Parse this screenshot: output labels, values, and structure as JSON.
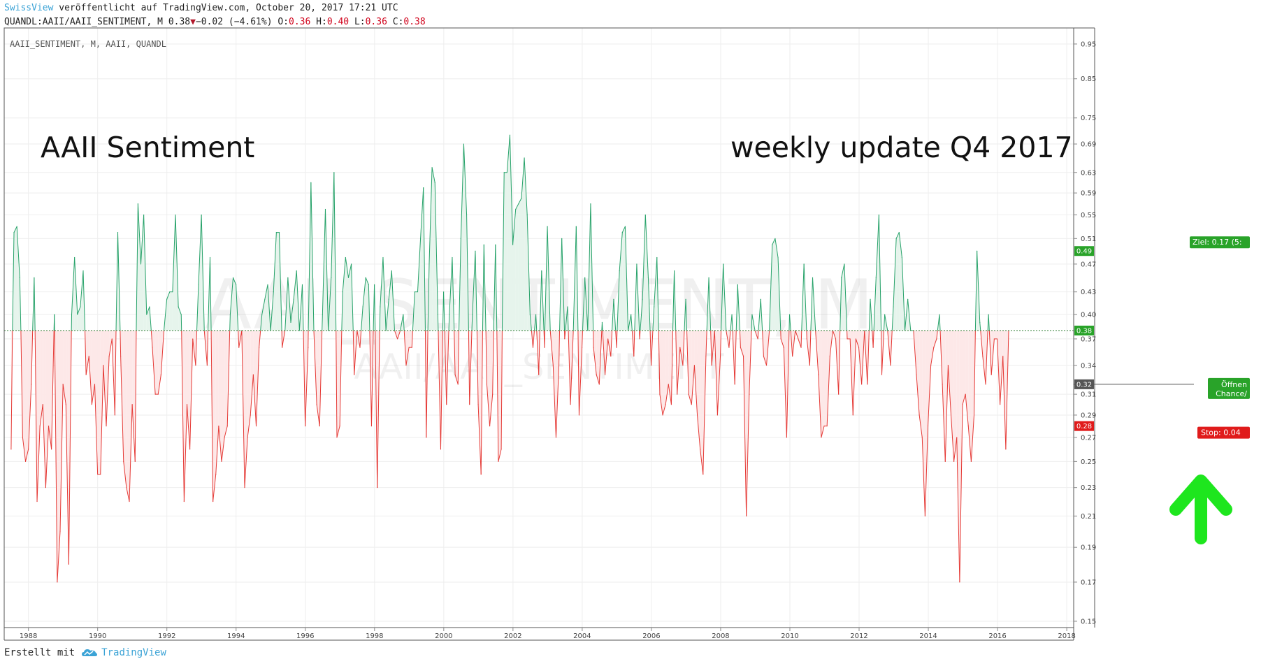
{
  "header": {
    "publisher": "SwissView",
    "published_text": "veröffentlicht auf TradingView.com, October 20, 2017 17:21 UTC",
    "symbol": "QUANDL:AAII/AAII_SENTIMENT, M",
    "last": "0.38",
    "change": "−0.02 (−4.61%)",
    "o_label": "O:",
    "o_value": "0.36",
    "h_label": "H:",
    "h_value": "0.40",
    "l_label": "L:",
    "l_value": "0.36",
    "c_label": "C:",
    "c_value": "0.38"
  },
  "footer": {
    "created_with": "Erstellt mit",
    "brand": "TradingView"
  },
  "colors": {
    "up_line": "#26a269",
    "down_line": "#e53935",
    "up_fill": "#e6f4ec",
    "down_fill": "#fde8e8",
    "target_fill": "#cdebc9",
    "stop_fill": "#f8c8c8",
    "arrow": "#1ee61e"
  },
  "chart_data": {
    "type": "line",
    "legend_text": "AAII_SENTIMENT, M, AAII, QUANDL",
    "title": "AAII Sentiment",
    "subtitle": "weekly update Q4 2017",
    "watermark_main": "AAII_SENTIMENT, M",
    "watermark_sub": "AAII/AAII_SENTIMENT",
    "x_tick_labels": [
      "1988",
      "1990",
      "1992",
      "1994",
      "1996",
      "1998",
      "2000",
      "2002",
      "2004",
      "2006",
      "2008",
      "2010",
      "2012",
      "2014",
      "2016",
      "2018"
    ],
    "y_tick_labels": [
      "0.95",
      "0.85",
      "0.75",
      "0.69",
      "0.63",
      "0.59",
      "0.55",
      "0.51",
      "0.47",
      "0.43",
      "0.40",
      "0.37",
      "0.34",
      "0.31",
      "0.29",
      "0.27",
      "0.25",
      "0.23",
      "0.21",
      "0.19",
      "0.17",
      "0.15"
    ],
    "y_scale": "log",
    "xlim": [
      1987.3,
      2018.2
    ],
    "ylim": [
      0.147,
      1.0
    ],
    "baseline": 0.38,
    "x_start": 1987.5,
    "x_step": 0.0833,
    "values": [
      0.26,
      0.52,
      0.53,
      0.45,
      0.27,
      0.25,
      0.26,
      0.32,
      0.45,
      0.22,
      0.28,
      0.3,
      0.23,
      0.28,
      0.26,
      0.4,
      0.17,
      0.2,
      0.32,
      0.3,
      0.18,
      0.4,
      0.48,
      0.4,
      0.41,
      0.46,
      0.33,
      0.35,
      0.3,
      0.32,
      0.24,
      0.24,
      0.34,
      0.28,
      0.35,
      0.37,
      0.29,
      0.52,
      0.35,
      0.25,
      0.23,
      0.22,
      0.3,
      0.25,
      0.57,
      0.47,
      0.55,
      0.4,
      0.41,
      0.36,
      0.31,
      0.31,
      0.33,
      0.38,
      0.42,
      0.43,
      0.43,
      0.55,
      0.41,
      0.4,
      0.22,
      0.3,
      0.26,
      0.37,
      0.34,
      0.44,
      0.55,
      0.38,
      0.34,
      0.48,
      0.22,
      0.24,
      0.28,
      0.25,
      0.27,
      0.28,
      0.4,
      0.45,
      0.44,
      0.36,
      0.38,
      0.23,
      0.27,
      0.29,
      0.33,
      0.28,
      0.36,
      0.4,
      0.42,
      0.44,
      0.38,
      0.43,
      0.52,
      0.52,
      0.36,
      0.38,
      0.45,
      0.39,
      0.42,
      0.46,
      0.38,
      0.44,
      0.28,
      0.36,
      0.61,
      0.38,
      0.3,
      0.28,
      0.4,
      0.56,
      0.38,
      0.45,
      0.63,
      0.27,
      0.28,
      0.43,
      0.48,
      0.45,
      0.47,
      0.33,
      0.38,
      0.36,
      0.41,
      0.45,
      0.44,
      0.28,
      0.44,
      0.23,
      0.41,
      0.48,
      0.38,
      0.42,
      0.46,
      0.38,
      0.37,
      0.38,
      0.4,
      0.34,
      0.36,
      0.36,
      0.43,
      0.43,
      0.51,
      0.6,
      0.27,
      0.47,
      0.64,
      0.61,
      0.4,
      0.26,
      0.43,
      0.3,
      0.4,
      0.48,
      0.33,
      0.32,
      0.51,
      0.69,
      0.55,
      0.3,
      0.4,
      0.49,
      0.3,
      0.24,
      0.5,
      0.32,
      0.28,
      0.31,
      0.5,
      0.25,
      0.26,
      0.63,
      0.63,
      0.71,
      0.5,
      0.56,
      0.57,
      0.58,
      0.66,
      0.55,
      0.4,
      0.36,
      0.4,
      0.33,
      0.46,
      0.36,
      0.53,
      0.38,
      0.34,
      0.27,
      0.34,
      0.51,
      0.37,
      0.41,
      0.3,
      0.38,
      0.53,
      0.29,
      0.36,
      0.45,
      0.38,
      0.57,
      0.36,
      0.33,
      0.32,
      0.39,
      0.33,
      0.37,
      0.35,
      0.42,
      0.36,
      0.46,
      0.52,
      0.53,
      0.38,
      0.4,
      0.35,
      0.47,
      0.37,
      0.42,
      0.55,
      0.45,
      0.34,
      0.41,
      0.48,
      0.31,
      0.29,
      0.3,
      0.32,
      0.3,
      0.46,
      0.31,
      0.36,
      0.34,
      0.42,
      0.31,
      0.3,
      0.34,
      0.29,
      0.26,
      0.24,
      0.35,
      0.45,
      0.34,
      0.38,
      0.29,
      0.35,
      0.47,
      0.38,
      0.36,
      0.4,
      0.32,
      0.44,
      0.36,
      0.35,
      0.21,
      0.31,
      0.4,
      0.38,
      0.37,
      0.42,
      0.35,
      0.34,
      0.38,
      0.5,
      0.51,
      0.48,
      0.37,
      0.36,
      0.27,
      0.4,
      0.35,
      0.38,
      0.37,
      0.36,
      0.47,
      0.37,
      0.34,
      0.45,
      0.38,
      0.33,
      0.27,
      0.28,
      0.28,
      0.35,
      0.38,
      0.37,
      0.31,
      0.45,
      0.47,
      0.37,
      0.37,
      0.29,
      0.37,
      0.36,
      0.32,
      0.38,
      0.32,
      0.42,
      0.36,
      0.45,
      0.55,
      0.33,
      0.4,
      0.38,
      0.34,
      0.41,
      0.51,
      0.52,
      0.48,
      0.38,
      0.42,
      0.38,
      0.38,
      0.33,
      0.29,
      0.27,
      0.21,
      0.28,
      0.34,
      0.36,
      0.37,
      0.4,
      0.32,
      0.25,
      0.34,
      0.29,
      0.25,
      0.27,
      0.17,
      0.3,
      0.31,
      0.28,
      0.25,
      0.29,
      0.49,
      0.39,
      0.35,
      0.32,
      0.4,
      0.33,
      0.37,
      0.37,
      0.3,
      0.35,
      0.26,
      0.38
    ],
    "position": {
      "entry": 0.32,
      "target": 0.49,
      "stop": 0.28,
      "entry_label": "0.32",
      "target_price_label": "0.49",
      "stop_price_label": "0.28",
      "baseline_label": "0.38",
      "target_text": "Ziel: 0.17 (5:",
      "stop_text": "Stop: 0.04",
      "open_text": "Öffnen",
      "chance_text": "Chance/"
    }
  }
}
